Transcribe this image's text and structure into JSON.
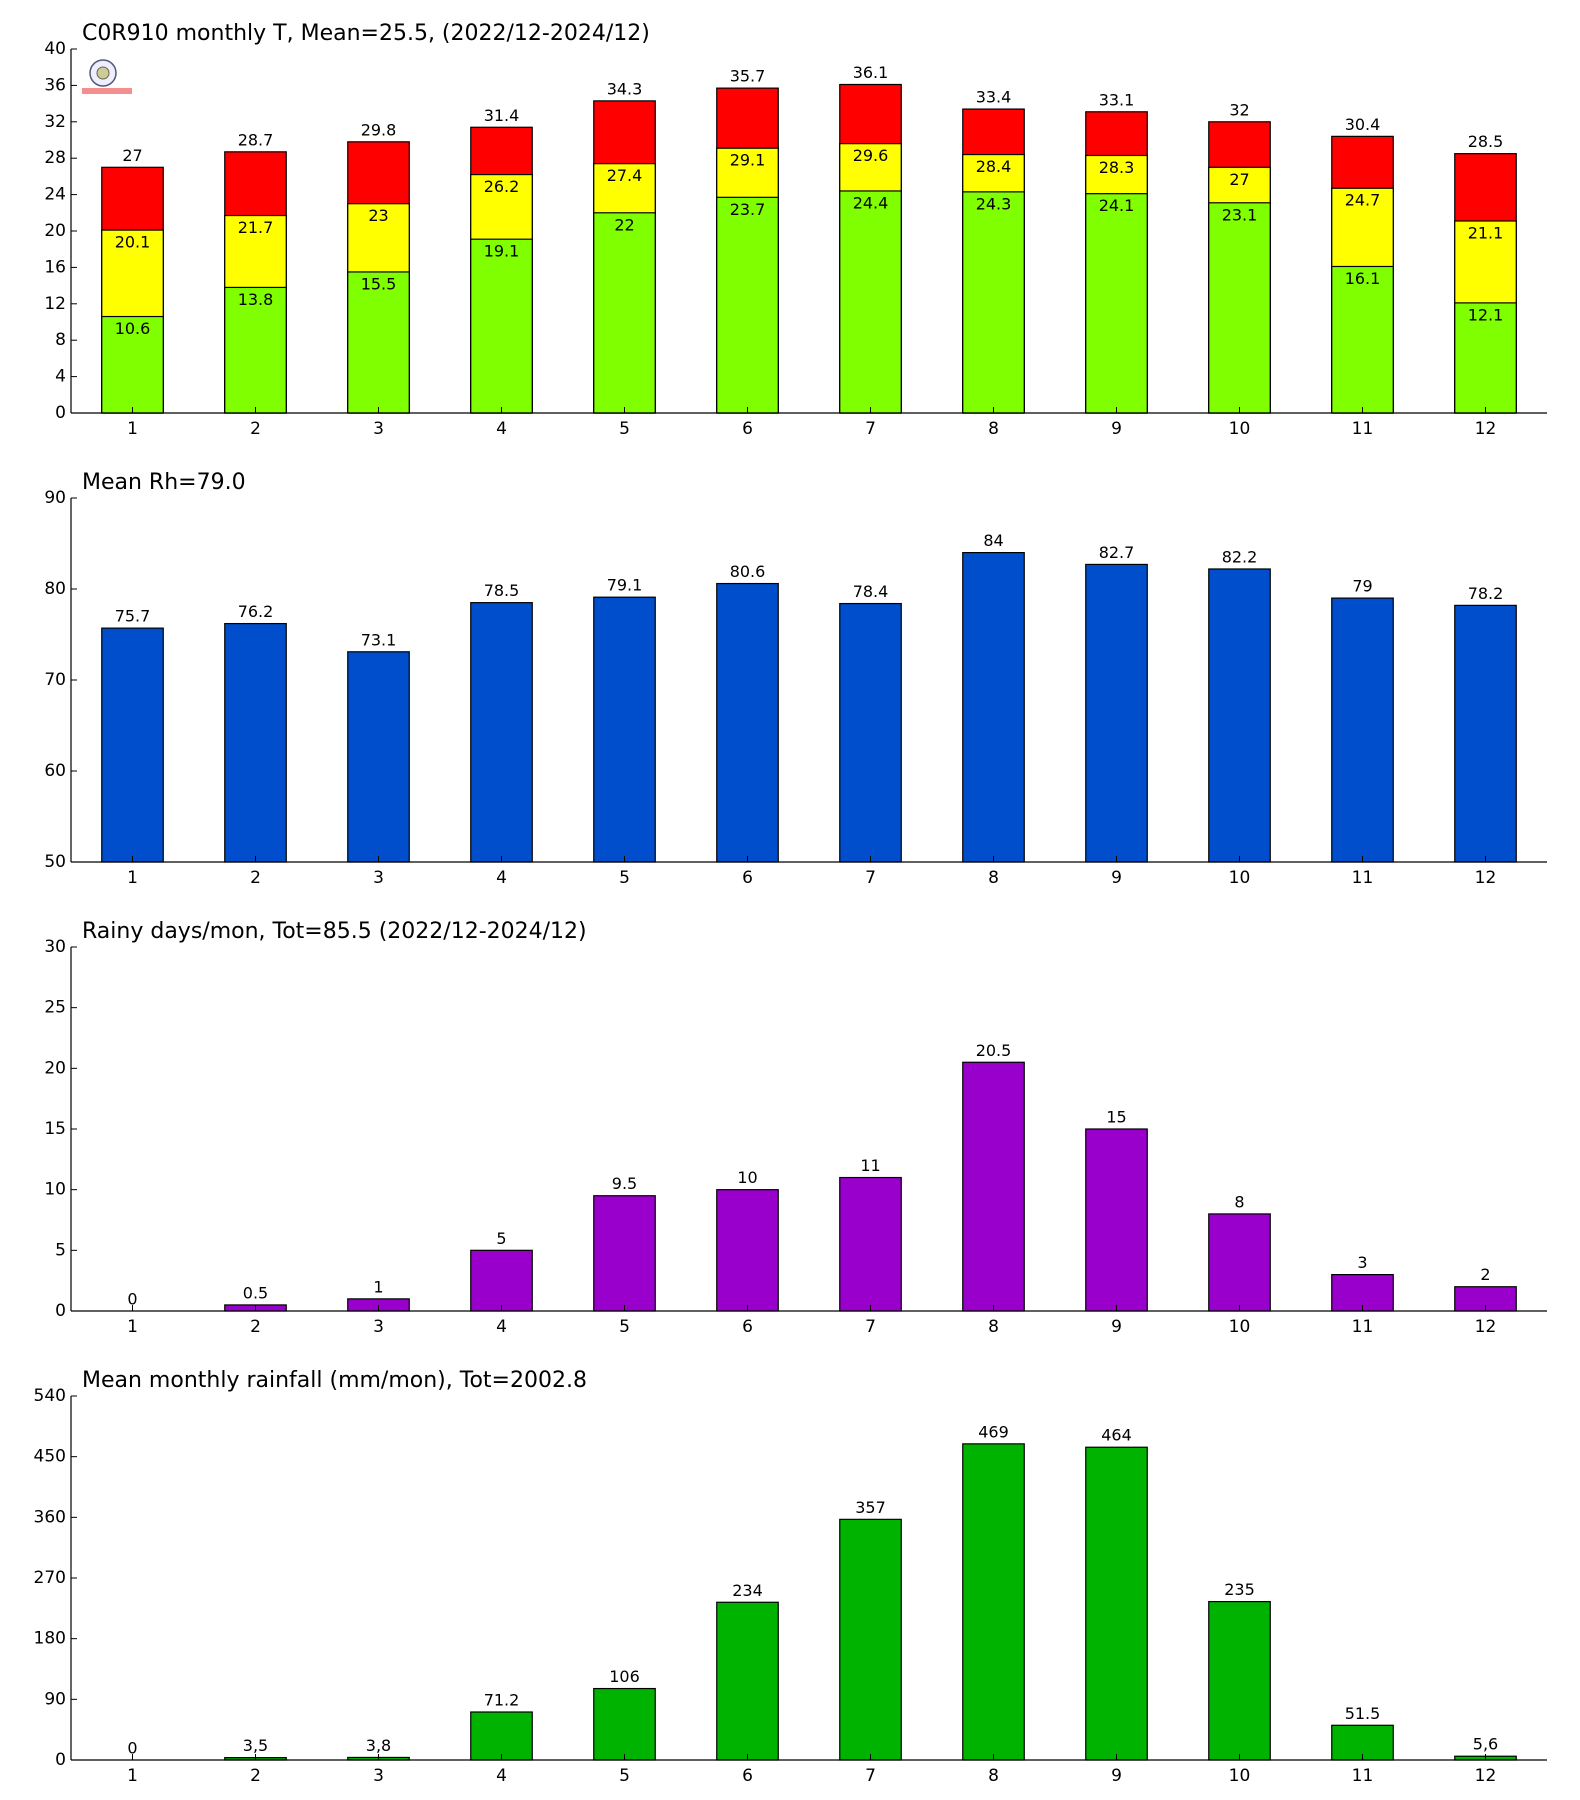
{
  "chart_data": [
    {
      "type": "bar",
      "barmode": "overlay",
      "title": "C0R910 monthly T, Mean=25.5, (2022/12-2024/12)",
      "categories": [
        "1",
        "2",
        "3",
        "4",
        "5",
        "6",
        "7",
        "8",
        "9",
        "10",
        "11",
        "12"
      ],
      "series": [
        {
          "color": "#ff0000",
          "values": [
            27,
            28.7,
            29.8,
            31.4,
            34.3,
            35.7,
            36.1,
            33.4,
            33.1,
            32,
            30.4,
            28.5
          ]
        },
        {
          "color": "#ffff00",
          "values": [
            20.1,
            21.7,
            23,
            26.2,
            27.4,
            29.1,
            29.6,
            28.4,
            28.3,
            27,
            24.7,
            21.1
          ]
        },
        {
          "color": "#80ff00",
          "values": [
            10.6,
            13.8,
            15.5,
            19.1,
            22,
            23.7,
            24.4,
            24.3,
            24.1,
            23.1,
            16.1,
            12.1
          ]
        }
      ],
      "ylim": [
        0,
        40
      ],
      "yticks": [
        0,
        4,
        8,
        12,
        16,
        20,
        24,
        28,
        32,
        36,
        40
      ]
    },
    {
      "type": "bar",
      "title": "Mean Rh=79.0",
      "categories": [
        "1",
        "2",
        "3",
        "4",
        "5",
        "6",
        "7",
        "8",
        "9",
        "10",
        "11",
        "12"
      ],
      "series": [
        {
          "color": "#004ecc",
          "values": [
            75.7,
            76.2,
            73.1,
            78.5,
            79.1,
            80.6,
            78.4,
            84,
            82.7,
            82.2,
            79,
            78.2
          ]
        }
      ],
      "ylim": [
        50,
        90
      ],
      "yticks": [
        50,
        60,
        70,
        80,
        90
      ]
    },
    {
      "type": "bar",
      "title": "Rainy days/mon, Tot=85.5 (2022/12-2024/12)",
      "categories": [
        "1",
        "2",
        "3",
        "4",
        "5",
        "6",
        "7",
        "8",
        "9",
        "10",
        "11",
        "12"
      ],
      "series": [
        {
          "color": "#9900cc",
          "values": [
            0,
            0.5,
            1,
            5,
            9.5,
            10,
            11,
            20.5,
            15,
            8,
            3,
            2
          ]
        }
      ],
      "ylim": [
        0,
        30
      ],
      "yticks": [
        0,
        5,
        10,
        15,
        20,
        25,
        30
      ]
    },
    {
      "type": "bar",
      "title": "Mean monthly rainfall (mm/mon), Tot=2002.8",
      "categories": [
        "1",
        "2",
        "3",
        "4",
        "5",
        "6",
        "7",
        "8",
        "9",
        "10",
        "11",
        "12"
      ],
      "series": [
        {
          "color": "#00b300",
          "values": [
            0,
            3.5,
            3.8,
            71.2,
            106,
            234,
            357,
            469,
            464,
            235,
            51.5,
            5.6
          ],
          "value_labels": [
            "0",
            "3,5",
            "3,8",
            "71.2",
            "106",
            "234",
            "357",
            "469",
            "464",
            "235",
            "51.5",
            "5,6"
          ]
        }
      ],
      "ylim": [
        0,
        540
      ],
      "yticks": [
        0,
        90,
        180,
        270,
        360,
        450,
        540
      ]
    }
  ]
}
